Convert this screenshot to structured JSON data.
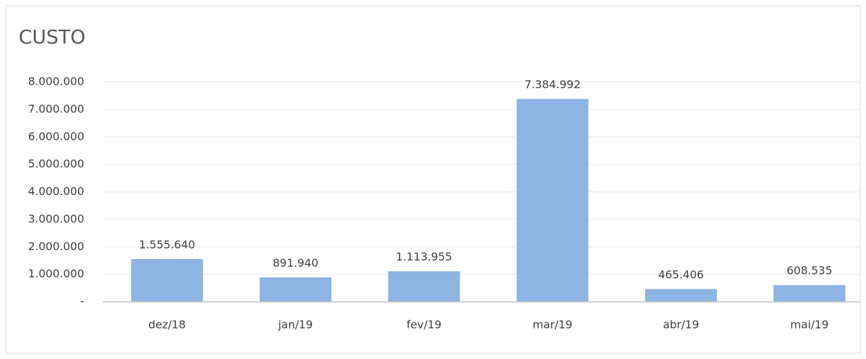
{
  "chart_data": {
    "type": "bar",
    "title": "CUSTO",
    "categories": [
      "dez/18",
      "jan/19",
      "fev/19",
      "mar/19",
      "abr/19",
      "mai/19"
    ],
    "values": [
      1555640,
      891940,
      1113955,
      7384992,
      465406,
      608535
    ],
    "value_labels": [
      "1.555.640",
      "891.940",
      "1.113.955",
      "7.384.992",
      "465.406",
      "608.535"
    ],
    "color": "#8db4e2",
    "ylim": [
      0,
      8000000
    ],
    "yticks": [
      {
        "value": 0,
        "label": "-"
      },
      {
        "value": 1000000,
        "label": "1.000.000"
      },
      {
        "value": 2000000,
        "label": "2.000.000"
      },
      {
        "value": 3000000,
        "label": "3.000.000"
      },
      {
        "value": 4000000,
        "label": "4.000.000"
      },
      {
        "value": 5000000,
        "label": "5.000.000"
      },
      {
        "value": 6000000,
        "label": "6.000.000"
      },
      {
        "value": 7000000,
        "label": "7.000.000"
      },
      {
        "value": 8000000,
        "label": "8.000.000"
      }
    ],
    "grid": true
  }
}
